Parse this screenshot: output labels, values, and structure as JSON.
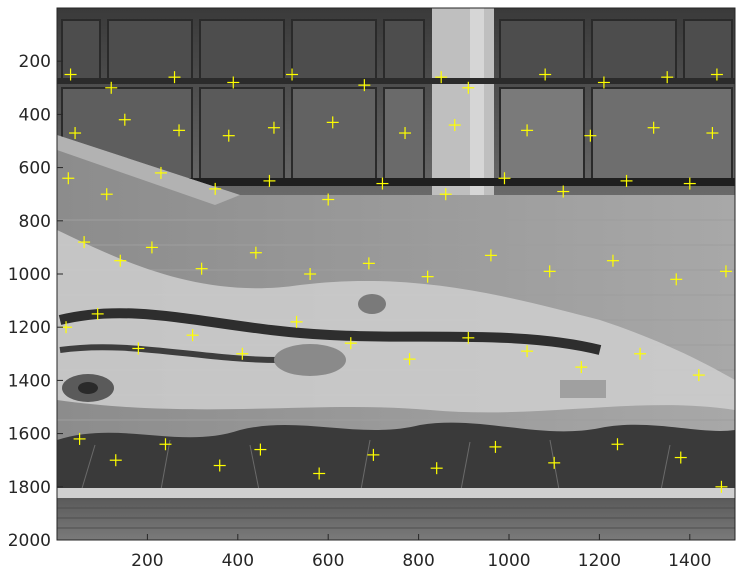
{
  "figure": {
    "image_description_kind": "grayscale photo of a building facade with a mural and stairs, overlaid with yellow keypoint markers",
    "marker_color": "#ffff00",
    "marker_symbol": "plus",
    "axis_color": "#262626"
  },
  "axes": {
    "x": {
      "range": [
        0,
        1500
      ],
      "ticks": [
        200,
        400,
        600,
        800,
        1000,
        1200,
        1400
      ]
    },
    "y": {
      "range": [
        0,
        2000
      ],
      "reversed": true,
      "ticks": [
        200,
        400,
        600,
        800,
        1000,
        1200,
        1400,
        1600,
        1800,
        2000
      ]
    }
  },
  "chart_data": {
    "type": "scatter",
    "x": [
      30,
      120,
      260,
      390,
      520,
      680,
      850,
      910,
      1080,
      1210,
      1350,
      1460,
      40,
      150,
      270,
      380,
      480,
      610,
      770,
      880,
      1040,
      1180,
      1320,
      1450,
      25,
      110,
      230,
      350,
      470,
      600,
      720,
      860,
      990,
      1120,
      1260,
      1400,
      60,
      140,
      210,
      320,
      440,
      560,
      690,
      820,
      960,
      1090,
      1230,
      1370,
      1480,
      20,
      90,
      180,
      300,
      410,
      530,
      650,
      780,
      910,
      1040,
      1160,
      1290,
      1420,
      50,
      130,
      240,
      360,
      450,
      580,
      700,
      840,
      970,
      1100,
      1240,
      1380,
      1470
    ],
    "y": [
      250,
      300,
      260,
      280,
      250,
      290,
      260,
      300,
      250,
      280,
      260,
      250,
      470,
      420,
      460,
      480,
      450,
      430,
      470,
      440,
      460,
      480,
      450,
      470,
      640,
      700,
      620,
      680,
      650,
      720,
      660,
      700,
      640,
      690,
      650,
      660,
      880,
      950,
      900,
      980,
      920,
      1000,
      960,
      1010,
      930,
      990,
      950,
      1020,
      990,
      1200,
      1150,
      1280,
      1230,
      1300,
      1180,
      1260,
      1320,
      1240,
      1290,
      1350,
      1300,
      1380,
      1620,
      1700,
      1640,
      1720,
      1660,
      1750,
      1680,
      1730,
      1650,
      1710,
      1640,
      1690,
      1800
    ]
  }
}
